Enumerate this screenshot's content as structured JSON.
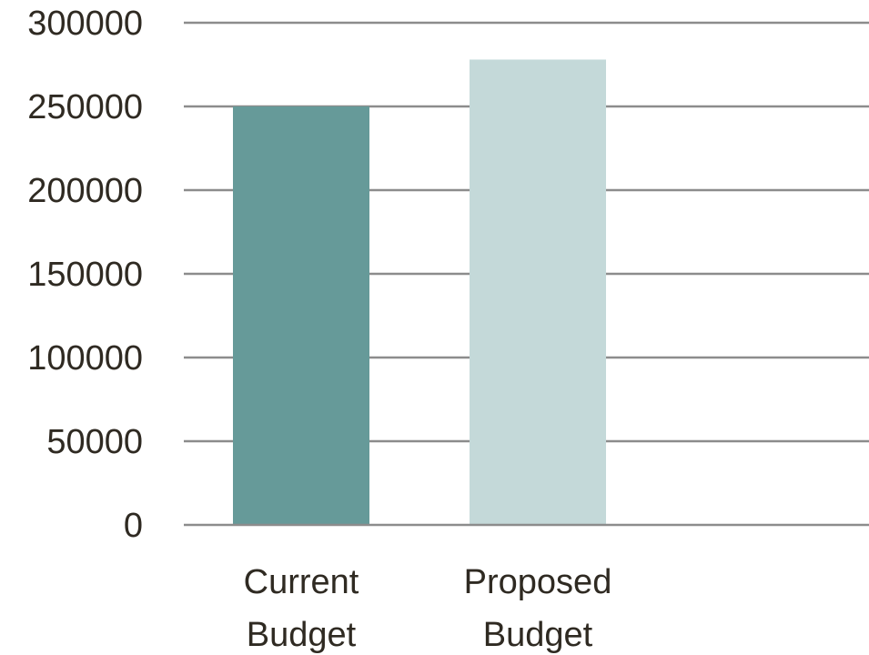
{
  "chart_data": {
    "type": "bar",
    "categories": [
      "Current Budget",
      "Proposed Budget"
    ],
    "values": [
      250000,
      278000
    ],
    "title": "",
    "xlabel": "",
    "ylabel": "",
    "ylim": [
      0,
      300000
    ],
    "yticks": [
      0,
      50000,
      100000,
      150000,
      200000,
      250000,
      300000
    ],
    "ytick_labels": [
      "0",
      "50000",
      "100000",
      "150000",
      "200000",
      "250000",
      "300000"
    ],
    "grid": true,
    "legend": "none",
    "colors": [
      "#669a99",
      "#c4d9d9"
    ]
  }
}
